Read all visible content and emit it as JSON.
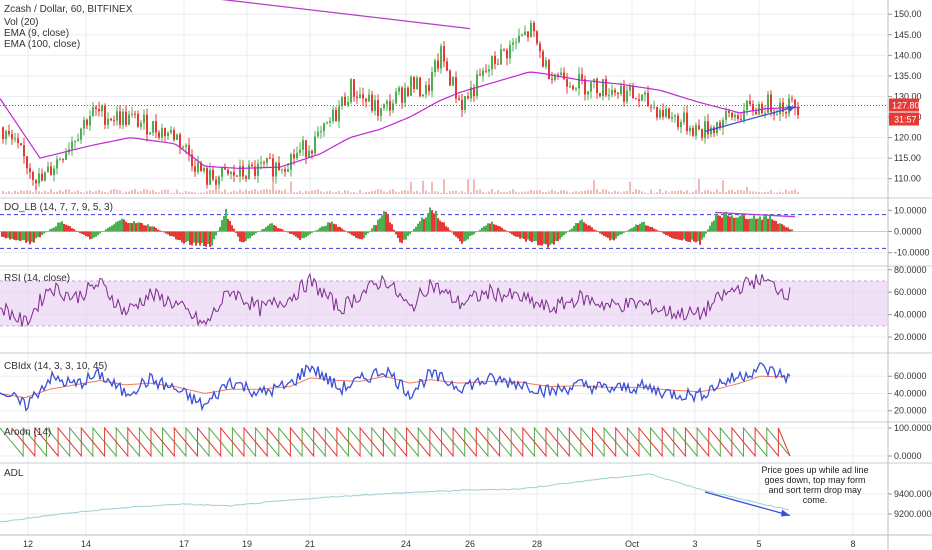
{
  "header": {
    "symbol_line": "Zcash / Dollar, 60, BITFINEX",
    "indicators": [
      "Vol (20)",
      "EMA (9, close)",
      "EMA (100, close)"
    ]
  },
  "colors": {
    "up": "#4caf50",
    "down": "#e53935",
    "ema100": "#c026d3",
    "trendline": "#b040c8",
    "blue": "#3b4fd6",
    "rsi_line": "#7b2a8c",
    "rsi_band": "#e6c8f0",
    "ad_line": "#9ecfd6",
    "dashed": "#3a3adb",
    "green_line": "#5aa84a",
    "red_line": "#e53935",
    "price_tag": "#e53935",
    "grid": "#ebedf0"
  },
  "price_tags": {
    "last_price": "127.80",
    "countdown": "31:57"
  },
  "annotation": "Price goes up while ad line goes down, top may form and sort  term drop may come.",
  "x_axis": {
    "labels": [
      "12",
      "14",
      "17",
      "19",
      "21",
      "24",
      "26",
      "28",
      "Oct",
      "3",
      "5",
      "8"
    ]
  },
  "chart_data": [
    {
      "type": "candlestick",
      "title": "Zcash / Dollar, 60, BITFINEX",
      "ylim": [
        107,
        152
      ],
      "y_ticks": [
        "110.00",
        "115.00",
        "120.00",
        "125.00",
        "130.00",
        "135.00",
        "140.00",
        "145.00",
        "150.00"
      ],
      "anchors_x": [
        0,
        40,
        90,
        130,
        175,
        205,
        240,
        280,
        320,
        350,
        380,
        410,
        425,
        440,
        460,
        495,
        530,
        545,
        580,
        620,
        660,
        700,
        740,
        765,
        790
      ],
      "close_path": [
        122.5,
        109,
        126,
        124.5,
        120.5,
        110,
        111,
        113.5,
        120,
        132,
        126,
        133,
        131,
        140,
        128,
        139,
        146,
        137,
        133,
        131.5,
        126.5,
        121.5,
        126,
        128,
        127.8
      ],
      "ema100": [
        129.5,
        115,
        118,
        120,
        118.5,
        113,
        112.5,
        112.8,
        116,
        120,
        122,
        125,
        127,
        129,
        131,
        133.5,
        136,
        135.5,
        134,
        133,
        131.5,
        128.5,
        126,
        127,
        127.3
      ],
      "trendlines": [
        {
          "from": [
            120,
            156.5
          ],
          "to": [
            470,
            146.5
          ]
        },
        {
          "from": [
            705,
            121.5
          ],
          "to": [
            795,
            127.5
          ]
        }
      ],
      "last_price": 127.8
    },
    {
      "type": "histogram",
      "title": "DO_LB (14, 7, 7, 9, 5, 3)",
      "ylim": [
        -13,
        13
      ],
      "y_ticks": [
        "10.0000",
        "0.0000",
        "-10.0000"
      ],
      "levels": [
        8,
        -8
      ],
      "anchors_x": [
        0,
        30,
        60,
        90,
        120,
        150,
        180,
        210,
        225,
        240,
        270,
        300,
        330,
        360,
        385,
        400,
        430,
        460,
        490,
        520,
        550,
        580,
        610,
        640,
        670,
        700,
        715,
        740,
        770,
        790
      ],
      "values": [
        -3,
        -6,
        5,
        -4,
        6,
        3,
        -5,
        -8,
        10,
        -6,
        4,
        -4,
        5,
        -5,
        10,
        -7,
        12,
        -6,
        5,
        -4,
        -8,
        6,
        -5,
        5,
        -3,
        -6,
        9,
        8,
        7,
        1
      ],
      "trendline": {
        "from": [
          715,
          9
        ],
        "to": [
          795,
          7
        ]
      }
    },
    {
      "type": "line",
      "title": "RSI (14, close)",
      "ylim": [
        12,
        78
      ],
      "y_ticks": [
        "80.0000",
        "60.0000",
        "40.0000",
        "20.0000"
      ],
      "band": [
        30,
        70
      ],
      "anchors_x": [
        0,
        25,
        50,
        75,
        100,
        125,
        150,
        175,
        205,
        230,
        260,
        290,
        310,
        340,
        360,
        385,
        410,
        430,
        460,
        490,
        520,
        550,
        580,
        610,
        640,
        670,
        700,
        720,
        740,
        760,
        790
      ],
      "values": [
        48,
        32,
        65,
        55,
        68,
        42,
        58,
        50,
        30,
        62,
        45,
        55,
        70,
        45,
        58,
        72,
        45,
        68,
        50,
        60,
        55,
        45,
        55,
        48,
        50,
        42,
        40,
        55,
        65,
        72,
        58
      ]
    },
    {
      "type": "line",
      "title": "CBIdx (14, 3, 3, 10, 45)",
      "ylim": [
        15,
        80
      ],
      "y_ticks": [
        "60.0000",
        "40.0000",
        "20.0000"
      ],
      "anchors_x": [
        0,
        25,
        50,
        75,
        100,
        125,
        150,
        175,
        205,
        230,
        260,
        290,
        310,
        340,
        360,
        385,
        410,
        430,
        460,
        490,
        520,
        550,
        580,
        610,
        640,
        670,
        700,
        720,
        740,
        760,
        790
      ],
      "series": [
        {
          "values": [
            45,
            25,
            58,
            50,
            62,
            40,
            56,
            45,
            25,
            55,
            40,
            50,
            72,
            45,
            55,
            68,
            40,
            62,
            48,
            56,
            52,
            42,
            50,
            45,
            48,
            40,
            38,
            52,
            60,
            70,
            58
          ]
        },
        {
          "values": [
            40,
            35,
            45,
            50,
            55,
            50,
            52,
            48,
            40,
            45,
            45,
            48,
            58,
            55,
            54,
            60,
            52,
            56,
            52,
            54,
            53,
            48,
            49,
            47,
            47,
            44,
            42,
            46,
            52,
            60,
            59
          ]
        }
      ]
    },
    {
      "type": "line",
      "title": "Aroon (14)",
      "ylim": [
        0,
        100
      ],
      "y_ticks": [
        "100.0000",
        "0.0000"
      ],
      "cycle_count": 34,
      "series": [
        {
          "phase": 0.0
        },
        {
          "phase": 0.5
        }
      ]
    },
    {
      "type": "line",
      "title": "ADL",
      "ylim": [
        9050,
        9650
      ],
      "y_ticks": [
        "9400.0000",
        "9200.0000"
      ],
      "anchors_x": [
        0,
        60,
        120,
        180,
        230,
        280,
        330,
        380,
        420,
        470,
        520,
        560,
        600,
        650,
        700,
        740,
        790
      ],
      "values": [
        9120,
        9200,
        9260,
        9300,
        9280,
        9330,
        9370,
        9400,
        9420,
        9440,
        9450,
        9500,
        9550,
        9600,
        9450,
        9350,
        9240
      ],
      "trendline": {
        "from": [
          705,
          9420
        ],
        "to": [
          790,
          9185
        ]
      }
    }
  ]
}
